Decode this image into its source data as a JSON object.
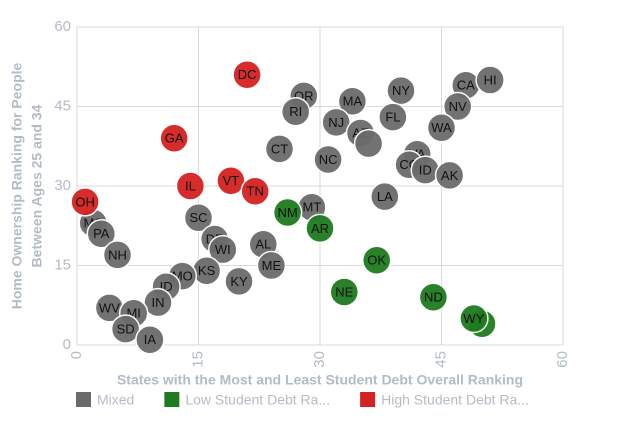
{
  "chart_data": {
    "type": "scatter",
    "xlabel": "States with the Most and Least Student Debt Overall Ranking",
    "ylabel": [
      "Home Ownership Ranking for People",
      "Between Ages 25 and 34"
    ],
    "xlim": [
      0,
      60
    ],
    "ylim": [
      0,
      60
    ],
    "xticks": [
      0,
      15,
      30,
      45,
      60
    ],
    "yticks": [
      0,
      15,
      30,
      45,
      60
    ],
    "grid": true,
    "legend": "bottom",
    "series": [
      {
        "name": "Mixed",
        "color": "#6b6b6b",
        "x": [
          28,
          27,
          34,
          40,
          48,
          51,
          47,
          32,
          39,
          35,
          36,
          45,
          25,
          31,
          42,
          41,
          43,
          46,
          38,
          29,
          15,
          23,
          17,
          18,
          24,
          16,
          20,
          13,
          11,
          10,
          2,
          3,
          5,
          4,
          7,
          6,
          9
        ],
        "y": [
          47,
          44,
          46,
          48,
          49,
          50,
          45,
          42,
          43,
          40,
          38,
          41,
          37,
          35,
          36,
          34,
          33,
          32,
          28,
          26,
          24,
          19,
          20,
          18,
          15,
          14,
          12,
          13,
          11,
          8,
          23,
          21,
          17,
          7,
          6,
          3,
          1
        ],
        "labels": [
          "OR",
          "RI",
          "MA",
          "NY",
          "CA",
          "HI",
          "NV",
          "NJ",
          "FL",
          "AZ",
          null,
          "WA",
          "CT",
          "NC",
          "VA",
          "CO",
          "ID",
          "AK",
          "LA",
          "MT",
          "SC",
          "AL",
          "DE",
          "WI",
          "ME",
          "KS",
          "KY",
          "MO",
          "ID",
          "IN",
          "MS",
          "PA",
          "NH",
          "WV",
          "MI",
          "SD",
          "IA"
        ]
      },
      {
        "name": "Low Student Debt Ra...",
        "color": "#1e7b1e",
        "x": [
          26,
          30,
          37,
          33,
          44,
          50,
          49
        ],
        "y": [
          25,
          22,
          16,
          10,
          9,
          4,
          5
        ],
        "labels": [
          "NM",
          "AR",
          "OK",
          "NE",
          "ND",
          null,
          "WY"
        ]
      },
      {
        "name": "High Student Debt Ra...",
        "color": "#d42121",
        "x": [
          21,
          12,
          14,
          19,
          22,
          1
        ],
        "y": [
          51,
          39,
          30,
          31,
          29,
          27
        ],
        "labels": [
          "DC",
          "GA",
          "IL",
          "VT",
          "TN",
          "OH"
        ]
      }
    ]
  }
}
